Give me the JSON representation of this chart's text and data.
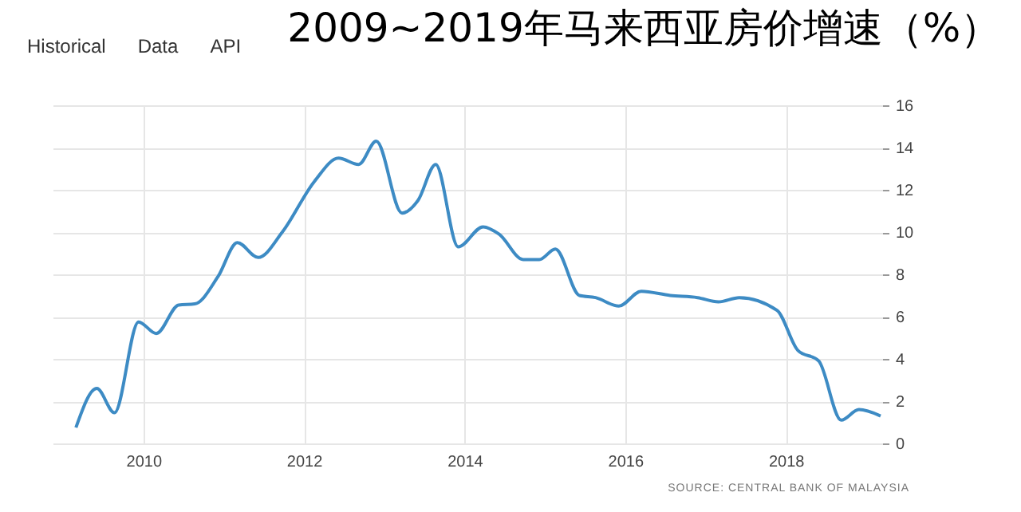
{
  "chart_data": {
    "type": "line",
    "title": "2009~2019年马来西亚房价增速（%）",
    "annotations": [
      "Historical",
      "Data",
      "API",
      "SOURCE: CENTRAL BANK OF MALAYSIA"
    ],
    "x": [
      2009.16,
      2009.42,
      2009.64,
      2009.94,
      2010.16,
      2010.44,
      2010.64,
      2010.93,
      2011.17,
      2011.43,
      2011.73,
      2012.13,
      2012.43,
      2012.68,
      2012.9,
      2013.22,
      2013.42,
      2013.64,
      2013.92,
      2014.23,
      2014.43,
      2014.73,
      2014.93,
      2015.13,
      2015.43,
      2015.63,
      2015.92,
      2016.2,
      2016.56,
      2016.9,
      2017.16,
      2017.42,
      2017.89,
      2018.15,
      2018.41,
      2018.69,
      2018.91,
      2019.18
    ],
    "series": [
      {
        "color": "#3d8bc4",
        "values": [
          0.75,
          2.6,
          1.45,
          5.75,
          5.2,
          6.55,
          6.6,
          7.9,
          9.5,
          8.8,
          10.0,
          12.4,
          13.5,
          13.2,
          14.3,
          10.9,
          11.5,
          13.2,
          9.3,
          10.25,
          9.9,
          8.7,
          8.7,
          9.2,
          7.0,
          6.9,
          6.5,
          7.2,
          7.0,
          6.9,
          6.7,
          6.9,
          6.3,
          4.4,
          3.9,
          1.1,
          1.6,
          1.3
        ]
      }
    ],
    "xlim": [
      2008.87,
      2019.2
    ],
    "xticks": [
      2010,
      2012,
      2014,
      2016,
      2018
    ],
    "ylim": [
      0,
      16
    ],
    "yticks": [
      0,
      2,
      4,
      6,
      8,
      10,
      12,
      14,
      16
    ],
    "grid": true,
    "marker": "none",
    "line_style": "solid"
  }
}
